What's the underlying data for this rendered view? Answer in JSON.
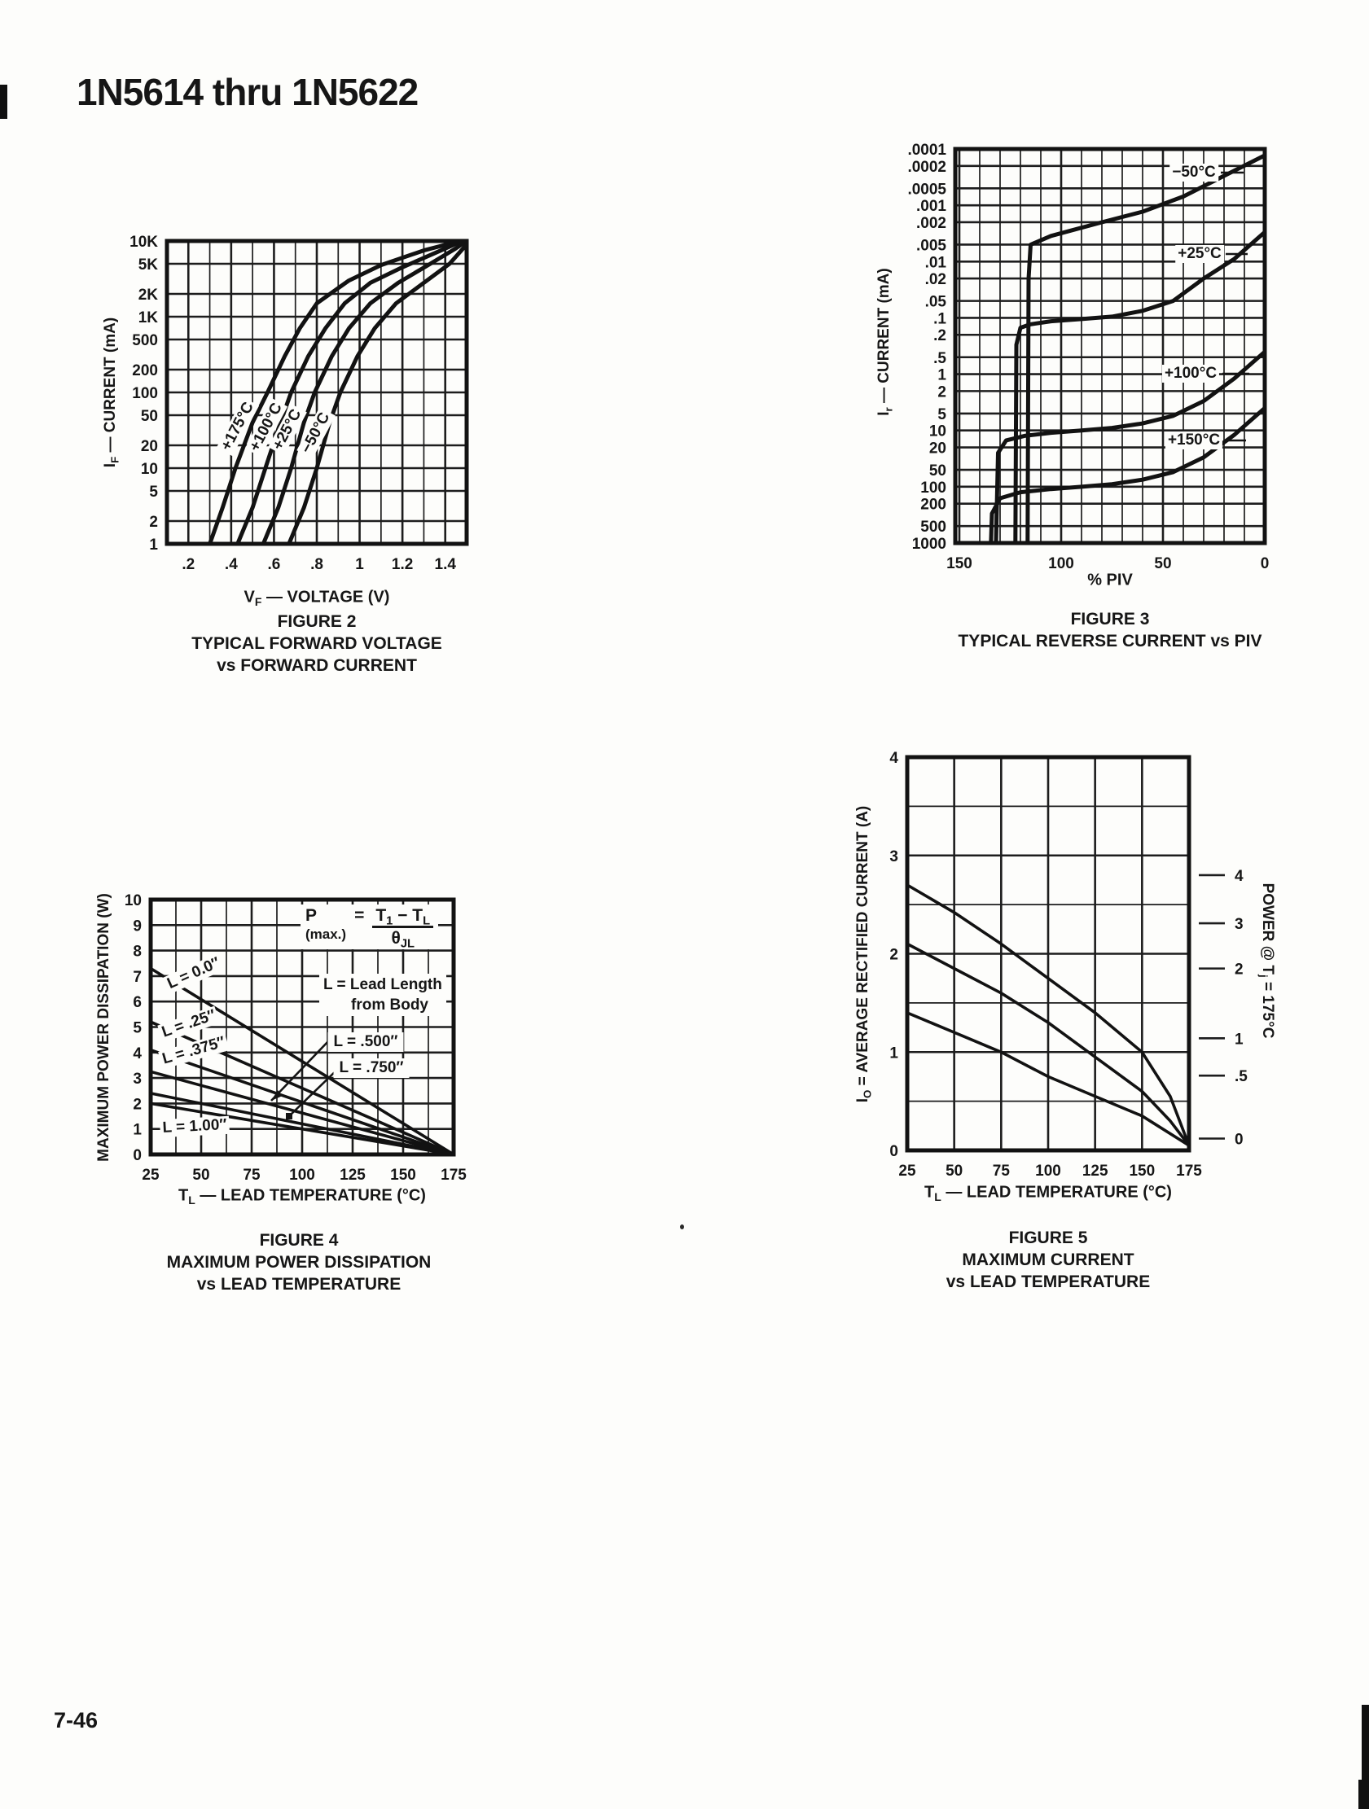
{
  "page": {
    "title": "1N5614 thru 1N5622",
    "page_number": "7-46"
  },
  "chart_data": {
    "fig2": {
      "type": "line",
      "caption": [
        "FIGURE 2",
        "TYPICAL FORWARD VOLTAGE",
        "vs FORWARD CURRENT"
      ],
      "xlabel": "V_F_ — VOLTAGE (V)",
      "ylabel": "I_F_ — CURRENT (mA)",
      "x_axis": {
        "scale": "linear",
        "min": 0.1,
        "max": 1.5,
        "tick_values": [
          0.2,
          0.4,
          0.6,
          0.8,
          1.0,
          1.2,
          1.4
        ],
        "tick_labels": [
          ".2",
          ".4",
          ".6",
          ".8",
          "1",
          "1.2",
          "1.4"
        ],
        "minor": [
          0.3,
          0.5,
          0.7,
          0.9,
          1.1,
          1.3
        ]
      },
      "y_axis": {
        "scale": "log",
        "min": 1,
        "max": 10000,
        "tick_values": [
          1,
          2,
          5,
          10,
          20,
          50,
          100,
          200,
          500,
          1000,
          2000,
          5000,
          10000
        ],
        "tick_labels": [
          "1",
          "2",
          "5",
          "10",
          "20",
          "50",
          "100",
          "200",
          "500",
          "1K",
          "2K",
          "5K",
          "10K"
        ],
        "minor": []
      },
      "series": [
        {
          "name": "+175°C",
          "points": [
            [
              0.3,
              1
            ],
            [
              0.36,
              3
            ],
            [
              0.42,
              10
            ],
            [
              0.5,
              40
            ],
            [
              0.57,
              100
            ],
            [
              0.65,
              300
            ],
            [
              0.72,
              700
            ],
            [
              0.8,
              1500
            ],
            [
              0.95,
              3000
            ],
            [
              1.1,
              4800
            ],
            [
              1.3,
              7500
            ],
            [
              1.47,
              10000
            ]
          ]
        },
        {
          "name": "+100°C",
          "points": [
            [
              0.43,
              1
            ],
            [
              0.5,
              3
            ],
            [
              0.56,
              10
            ],
            [
              0.63,
              40
            ],
            [
              0.68,
              100
            ],
            [
              0.76,
              300
            ],
            [
              0.84,
              700
            ],
            [
              0.93,
              1500
            ],
            [
              1.05,
              2800
            ],
            [
              1.2,
              4500
            ],
            [
              1.38,
              7500
            ],
            [
              1.48,
              10000
            ]
          ]
        },
        {
          "name": "+25°C",
          "points": [
            [
              0.55,
              1
            ],
            [
              0.62,
              3
            ],
            [
              0.68,
              10
            ],
            [
              0.74,
              40
            ],
            [
              0.79,
              100
            ],
            [
              0.87,
              300
            ],
            [
              0.95,
              700
            ],
            [
              1.05,
              1500
            ],
            [
              1.18,
              2800
            ],
            [
              1.32,
              4800
            ],
            [
              1.45,
              8000
            ],
            [
              1.5,
              10000
            ]
          ]
        },
        {
          "name": "−50°C",
          "points": [
            [
              0.67,
              1
            ],
            [
              0.74,
              3
            ],
            [
              0.8,
              10
            ],
            [
              0.86,
              40
            ],
            [
              0.91,
              100
            ],
            [
              0.99,
              300
            ],
            [
              1.07,
              700
            ],
            [
              1.17,
              1500
            ],
            [
              1.3,
              2800
            ],
            [
              1.42,
              5000
            ],
            [
              1.5,
              9000
            ]
          ]
        }
      ]
    },
    "fig3": {
      "type": "line",
      "caption": [
        "FIGURE 3",
        "TYPICAL REVERSE CURRENT vs PIV"
      ],
      "xlabel": "% PIV",
      "ylabel": "I_r_ — CURRENT (mA)",
      "x_axis": {
        "scale": "linear",
        "min": 0,
        "max": 152,
        "invert": true,
        "tick_values": [
          150,
          100,
          50,
          0
        ],
        "tick_labels": [
          "150",
          "100",
          "50",
          "0"
        ],
        "minor": [
          10,
          20,
          30,
          40,
          60,
          70,
          80,
          90,
          110,
          120,
          130,
          140
        ]
      },
      "y_axis": {
        "scale": "log",
        "min": 0.0001,
        "max": 1000,
        "invert": true,
        "tick_values": [
          0.0001,
          0.0002,
          0.0005,
          0.001,
          0.002,
          0.005,
          0.01,
          0.02,
          0.05,
          0.1,
          0.2,
          0.5,
          1,
          2,
          5,
          10,
          20,
          50,
          100,
          200,
          500,
          1000
        ],
        "tick_labels": [
          ".0001",
          ".0002",
          ".0005",
          ".001",
          ".002",
          ".005",
          ".01",
          ".02",
          ".05",
          ".1",
          ".2",
          ".5",
          "1",
          "2",
          "5",
          "10",
          "20",
          "50",
          "100",
          "200",
          "500",
          "1000"
        ],
        "minor": []
      },
      "series": [
        {
          "name": "−50°C",
          "points": [
            [
              0,
              0.00013
            ],
            [
              20,
              0.0003
            ],
            [
              40,
              0.0007
            ],
            [
              60,
              0.0013
            ],
            [
              80,
              0.002
            ],
            [
              95,
              0.0028
            ],
            [
              105,
              0.0035
            ],
            [
              112,
              0.0045
            ],
            [
              115,
              0.005
            ],
            [
              116,
              0.02
            ],
            [
              116.5,
              1000
            ]
          ]
        },
        {
          "name": "+25°C",
          "points": [
            [
              0,
              0.003
            ],
            [
              15,
              0.009
            ],
            [
              30,
              0.02
            ],
            [
              45,
              0.05
            ],
            [
              60,
              0.075
            ],
            [
              75,
              0.095
            ],
            [
              90,
              0.105
            ],
            [
              105,
              0.115
            ],
            [
              115,
              0.13
            ],
            [
              120,
              0.15
            ],
            [
              122,
              0.3
            ],
            [
              122.5,
              1000
            ]
          ]
        },
        {
          "name": "+100°C",
          "points": [
            [
              0,
              0.4
            ],
            [
              15,
              1.2
            ],
            [
              30,
              3
            ],
            [
              45,
              5.5
            ],
            [
              60,
              7.5
            ],
            [
              75,
              9
            ],
            [
              90,
              10
            ],
            [
              105,
              11
            ],
            [
              118,
              12.5
            ],
            [
              127,
              15
            ],
            [
              131,
              25
            ],
            [
              132,
              1000
            ]
          ]
        },
        {
          "name": "+150°C",
          "points": [
            [
              0,
              4
            ],
            [
              15,
              12
            ],
            [
              30,
              30
            ],
            [
              45,
              55
            ],
            [
              60,
              75
            ],
            [
              75,
              90
            ],
            [
              90,
              100
            ],
            [
              105,
              110
            ],
            [
              120,
              125
            ],
            [
              130,
              160
            ],
            [
              134,
              300
            ],
            [
              134.5,
              1000
            ]
          ]
        }
      ]
    },
    "fig4": {
      "type": "line",
      "caption": [
        "FIGURE 4",
        "MAXIMUM POWER DISSIPATION",
        "vs LEAD TEMPERATURE"
      ],
      "xlabel": "T_L_ — LEAD TEMPERATURE (°C)",
      "ylabel": "MAXIMUM POWER DISSIPATION (W)",
      "x_axis": {
        "scale": "linear",
        "min": 25,
        "max": 175,
        "tick_values": [
          25,
          50,
          75,
          100,
          125,
          150,
          175
        ],
        "tick_labels": [
          "25",
          "50",
          "75",
          "100",
          "125",
          "150",
          "175"
        ],
        "minor": [
          37.5,
          62.5,
          87.5,
          112.5,
          137.5,
          162.5
        ]
      },
      "y_axis": {
        "scale": "linear",
        "min": 0,
        "max": 10,
        "tick_values": [
          0,
          1,
          2,
          3,
          4,
          5,
          6,
          7,
          8,
          9,
          10
        ],
        "tick_labels": [
          "0",
          "1",
          "2",
          "3",
          "4",
          "5",
          "6",
          "7",
          "8",
          "9",
          "10"
        ],
        "minor": []
      },
      "series": [
        {
          "name": "L = 0.0″",
          "points": [
            [
              25,
              7.3
            ],
            [
              175,
              0
            ]
          ]
        },
        {
          "name": "L = .25″",
          "points": [
            [
              25,
              5.2
            ],
            [
              175,
              0
            ]
          ]
        },
        {
          "name": "L = .375″",
          "points": [
            [
              25,
              4.1
            ],
            [
              175,
              0
            ]
          ]
        },
        {
          "name": "L = .500″",
          "points": [
            [
              25,
              3.25
            ],
            [
              175,
              0
            ]
          ]
        },
        {
          "name": "L = .750″",
          "points": [
            [
              25,
              2.4
            ],
            [
              175,
              0
            ]
          ]
        },
        {
          "name": "L = 1.00″",
          "points": [
            [
              25,
              2.0
            ],
            [
              175,
              0
            ]
          ]
        }
      ],
      "annotations": {
        "formula": {
          "p": "P",
          "max": "(max.)",
          "eq": "=",
          "num": "T_1_ − T_L_",
          "den": "θ_JL_"
        },
        "lead_note": [
          "L = Lead Length",
          "from Body"
        ]
      }
    },
    "fig5": {
      "type": "line",
      "caption": [
        "FIGURE 5",
        "MAXIMUM CURRENT",
        "vs LEAD TEMPERATURE"
      ],
      "xlabel": "T_L_ — LEAD TEMPERATURE (°C)",
      "ylabel": "I_O_ = AVERAGE RECTIFIED CURRENT (A)",
      "x_axis": {
        "scale": "linear",
        "min": 25,
        "max": 175,
        "tick_values": [
          25,
          50,
          75,
          100,
          125,
          150,
          175
        ],
        "tick_labels": [
          "25",
          "50",
          "75",
          "100",
          "125",
          "150",
          "175"
        ],
        "minor": []
      },
      "y_axis": {
        "scale": "linear",
        "min": 0,
        "max": 4,
        "tick_values": [
          0,
          1,
          2,
          3,
          4
        ],
        "tick_labels": [
          "0",
          "1",
          "2",
          "3",
          "4"
        ],
        "minor": [
          0.5,
          1.5,
          2.5,
          3.5
        ]
      },
      "right_axis": {
        "label": "POWER @ T_j_ = 175°C",
        "ticks": [
          {
            "label": "4",
            "at": 2.8
          },
          {
            "label": "3",
            "at": 2.31
          },
          {
            "label": "2",
            "at": 1.85
          },
          {
            "label": "1",
            "at": 1.14
          },
          {
            "label": ".5",
            "at": 0.76
          },
          {
            "label": "0",
            "at": 0.12
          }
        ]
      },
      "series": [
        {
          "points": [
            [
              25,
              2.7
            ],
            [
              50,
              2.42
            ],
            [
              75,
              2.1
            ],
            [
              100,
              1.75
            ],
            [
              125,
              1.4
            ],
            [
              150,
              1.0
            ],
            [
              165,
              0.55
            ],
            [
              175,
              0.05
            ]
          ]
        },
        {
          "points": [
            [
              25,
              2.1
            ],
            [
              50,
              1.85
            ],
            [
              75,
              1.6
            ],
            [
              100,
              1.3
            ],
            [
              125,
              0.95
            ],
            [
              150,
              0.6
            ],
            [
              165,
              0.3
            ],
            [
              175,
              0.05
            ]
          ]
        },
        {
          "points": [
            [
              25,
              1.4
            ],
            [
              50,
              1.2
            ],
            [
              75,
              1.0
            ],
            [
              100,
              0.75
            ],
            [
              125,
              0.55
            ],
            [
              150,
              0.35
            ],
            [
              175,
              0.05
            ]
          ]
        }
      ]
    }
  }
}
